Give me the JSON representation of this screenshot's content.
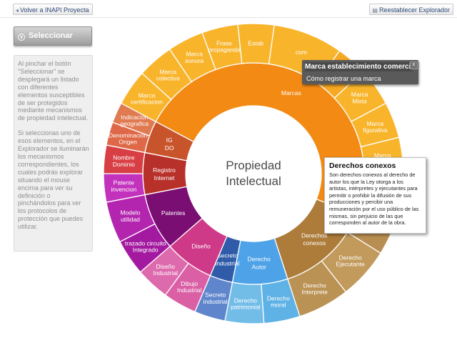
{
  "header": {
    "back_label": "Volver a INAPI Proyecta",
    "reset_label": "Reestablecer Explorador"
  },
  "sidebar": {
    "select_label": "Seleccionar",
    "paragraph1": "Al pinchar el botón \"Seleccionar\" se desplegará un listado con diferentes elementos susceptibles de ser protegidos mediante mecanismos de propiedad intelectual.",
    "paragraph2": "Si seleccionas uno de esos elementos, en el Explorador se iluminarán los mecanismos correspondientes, los cuales podrás explorar situando el mouse encima para ver su definición o pinchándolos para ver los protocolos de protección que puedes utilizar."
  },
  "wheel": {
    "center_line1": "Propiedad",
    "center_line2": "Intelectual",
    "center_color": "#ffffff",
    "inner": [
      {
        "label": "Marcas",
        "color": "#f28a14"
      },
      {
        "label": "Derechos conexos",
        "color": "#ad7c3b"
      },
      {
        "label": "Derecho Autor",
        "color": "#4ea3e8"
      },
      {
        "label": "Secreto industrial",
        "color": "#2f5ba8"
      },
      {
        "label": "Diseño",
        "color": "#cf3a88"
      },
      {
        "label": "Patentes",
        "color": "#7a0e73"
      },
      {
        "label": "Registro Internet",
        "color": "#b8302a"
      },
      {
        "label": "IG DO",
        "color": "#c8542c"
      }
    ],
    "outer": [
      {
        "label": "Marca establecimiento comercial",
        "color": "#f7a823"
      },
      {
        "label": "Marca Mixta",
        "color": "#f8b52c"
      },
      {
        "label": "Marca figurativa",
        "color": "#f8b52c"
      },
      {
        "label": "Marca",
        "color": "#f8b52c"
      },
      {
        "label": "Derechos conexos",
        "color": "#b98e52"
      },
      {
        "label": "Derecho Ejecutante",
        "color": "#c19a5c"
      },
      {
        "label": "Derecho Interprete",
        "color": "#ba9254"
      },
      {
        "label": "Derecho moral",
        "color": "#5fb2e6"
      },
      {
        "label": "Derecho patrimonial",
        "color": "#72bde8"
      },
      {
        "label": "Secreto industrial",
        "color": "#5f86cc"
      },
      {
        "label": "Dibujo Industrial",
        "color": "#da5fa5"
      },
      {
        "label": "Diseño Industrial",
        "color": "#de6aae"
      },
      {
        "label": "trazado circuito Integrado",
        "color": "#a31aa0"
      },
      {
        "label": "Modelo utilidad",
        "color": "#b325ae"
      },
      {
        "label": "Patente invencion",
        "color": "#c232bd"
      },
      {
        "label": "Nombre Dominio",
        "color": "#d83f44"
      },
      {
        "label": "Denominación Origen",
        "color": "#de6847"
      },
      {
        "label": "Indicación geografica",
        "color": "#e07a50"
      },
      {
        "label": "Marca certificacion",
        "color": "#f8b52c"
      },
      {
        "label": "Marca colectiva",
        "color": "#f8b52c"
      },
      {
        "label": "Marca sonora",
        "color": "#f8b52c"
      },
      {
        "label": "Frase propaganda",
        "color": "#f8b52c"
      },
      {
        "label": "Estab",
        "color": "#f8b52c"
      },
      {
        "label": "com",
        "color": "#f8b52c"
      }
    ]
  },
  "tooltip_marca": {
    "title": "Marca establecimiento comercial",
    "link": "Cómo registrar una marca",
    "close": "x"
  },
  "tooltip_conexos": {
    "title": "Derechos conexos",
    "body": "Son derechos conexos al derecho de autor los que la Ley otorga a los artistas, intérpretes y ejecutantes para permitir o prohibir la difusión de sus producciones y percibir una remuneración por el uso público de las mismas, sin perjuicio de las que corresponden al autor de la obra."
  }
}
